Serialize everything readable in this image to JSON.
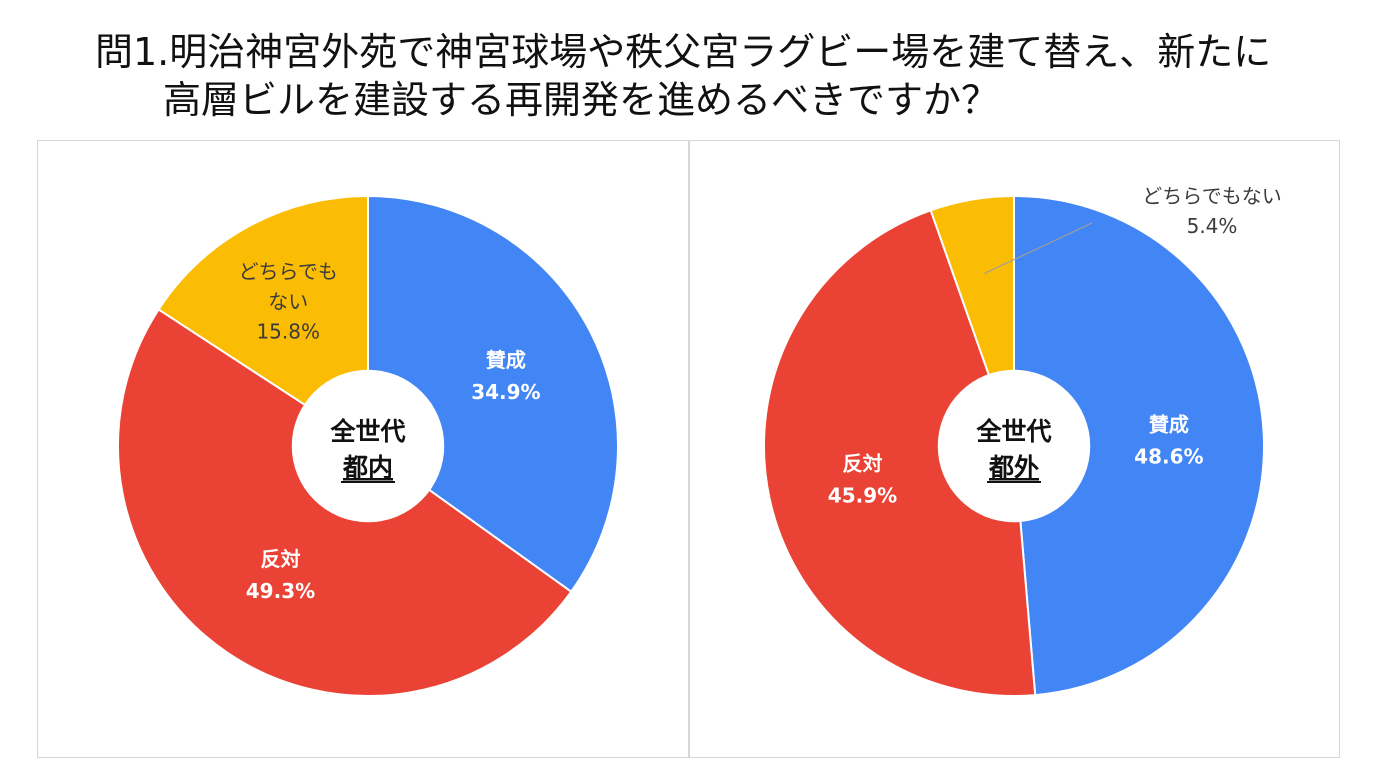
{
  "title": {
    "line1": "問1.明治神宮外苑で神宮球場や秩父宮ラグビー場を建て替え、新たに",
    "line2": "高層ビルを建設する再開発を進めるべきですか？"
  },
  "colors": {
    "yes": "#4285F4",
    "no": "#EA4335",
    "neither": "#FBBC04"
  },
  "chart_data": [
    {
      "type": "pie",
      "center_label_line1": "全世代",
      "center_label_line2": "都内",
      "categories": [
        "賛成",
        "反対",
        "どちらでもない"
      ],
      "values": [
        34.9,
        49.3,
        15.8
      ],
      "value_labels": [
        "34.9%",
        "49.3%",
        "15.8%"
      ],
      "neither_label_line1": "どちらでも",
      "neither_label_line2": "ない"
    },
    {
      "type": "pie",
      "center_label_line1": "全世代",
      "center_label_line2": "都外",
      "categories": [
        "賛成",
        "反対",
        "どちらでもない"
      ],
      "values": [
        48.6,
        45.9,
        5.4
      ],
      "value_labels": [
        "48.6%",
        "45.9%",
        "5.4%"
      ],
      "neither_label_line1": "どちらでもない"
    }
  ]
}
